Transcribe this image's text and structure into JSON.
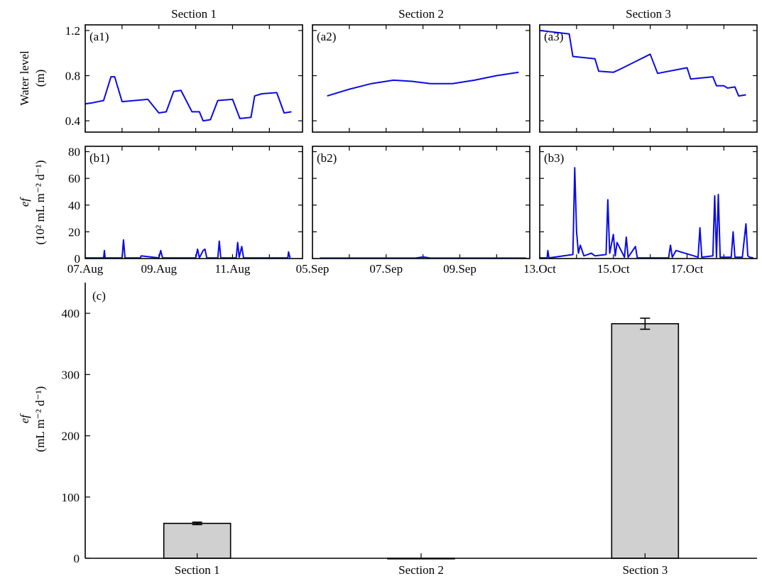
{
  "chart_data": [
    {
      "id": "a1",
      "type": "line",
      "panel_label": "(a1)",
      "title": "Section 1",
      "ylabel": "Water level",
      "ylabel_unit": "(m)",
      "ylim": [
        0.3,
        1.25
      ],
      "yticks": [
        0.4,
        0.8,
        1.2
      ],
      "ytick_labels": [
        "0.4",
        "0.8",
        "1.2"
      ],
      "xlim": [
        0,
        5.9
      ],
      "xticks": [
        0,
        1,
        2,
        3,
        4,
        5
      ],
      "series": [
        {
          "color": "#0b0be6",
          "x": [
            0,
            0.2,
            0.5,
            0.7,
            0.8,
            1.0,
            1.7,
            2.0,
            2.2,
            2.4,
            2.6,
            2.9,
            3.1,
            3.2,
            3.4,
            3.6,
            4.0,
            4.2,
            4.5,
            4.6,
            4.8,
            5.2,
            5.4,
            5.6
          ],
          "y": [
            0.55,
            0.56,
            0.58,
            0.79,
            0.79,
            0.57,
            0.59,
            0.47,
            0.48,
            0.66,
            0.67,
            0.48,
            0.48,
            0.4,
            0.41,
            0.58,
            0.59,
            0.42,
            0.43,
            0.62,
            0.64,
            0.65,
            0.47,
            0.48
          ]
        }
      ]
    },
    {
      "id": "a2",
      "type": "line",
      "panel_label": "(a2)",
      "title": "Section 2",
      "ylim": [
        0.3,
        1.25
      ],
      "yticks": [
        0.4,
        0.8,
        1.2
      ],
      "xlim": [
        0,
        5.9
      ],
      "xticks": [
        0,
        1,
        2,
        3,
        4,
        5
      ],
      "series": [
        {
          "color": "#0b0be6",
          "x": [
            0.4,
            1.0,
            1.6,
            2.2,
            2.7,
            3.2,
            3.8,
            4.4,
            5.0,
            5.6
          ],
          "y": [
            0.62,
            0.68,
            0.73,
            0.76,
            0.75,
            0.73,
            0.73,
            0.76,
            0.8,
            0.83
          ]
        }
      ]
    },
    {
      "id": "a3",
      "type": "line",
      "panel_label": "(a3)",
      "title": "Section 3",
      "ylim": [
        0.3,
        1.25
      ],
      "yticks": [
        0.4,
        0.8,
        1.2
      ],
      "xlim": [
        0,
        5.9
      ],
      "xticks": [
        0,
        1,
        2,
        3,
        4,
        5
      ],
      "series": [
        {
          "color": "#0b0be6",
          "x": [
            0,
            0.8,
            0.9,
            1.5,
            1.6,
            2.0,
            2.2,
            3.0,
            3.2,
            4.0,
            4.1,
            4.7,
            4.8,
            5.0,
            5.1,
            5.3,
            5.4,
            5.6
          ],
          "y": [
            1.2,
            1.17,
            0.97,
            0.95,
            0.84,
            0.83,
            0.86,
            0.99,
            0.82,
            0.87,
            0.77,
            0.79,
            0.71,
            0.71,
            0.69,
            0.7,
            0.62,
            0.63
          ]
        }
      ]
    },
    {
      "id": "b1",
      "type": "line",
      "panel_label": "(b1)",
      "ylabel_var": "ef",
      "ylabel_unit": "(10² mL m⁻² d⁻¹)",
      "ylim": [
        0,
        84
      ],
      "yticks": [
        0,
        20,
        40,
        60,
        80
      ],
      "ytick_labels": [
        "0",
        "20",
        "40",
        "60",
        "80"
      ],
      "xlim": [
        0,
        5.9
      ],
      "xticks": [
        0,
        1,
        2,
        3,
        4,
        5
      ],
      "xtick_labels": [
        "07.Aug",
        "09.Aug",
        "11.Aug"
      ],
      "xtick_label_at": [
        0,
        2,
        4
      ],
      "series": [
        {
          "color": "#0b0be6",
          "x": [
            0,
            0.5,
            0.52,
            0.54,
            1.0,
            1.04,
            1.08,
            1.5,
            1.52,
            2.0,
            2.05,
            2.1,
            3.0,
            3.05,
            3.1,
            3.2,
            3.25,
            3.3,
            3.6,
            3.64,
            3.68,
            4.1,
            4.14,
            4.18,
            4.25,
            4.3,
            5.5,
            5.52,
            5.56
          ],
          "y": [
            0.5,
            0.5,
            6,
            0.5,
            0.5,
            14,
            0.5,
            0.5,
            2,
            0.5,
            6,
            0.5,
            0.5,
            7,
            0.5,
            6,
            7,
            0.5,
            0.5,
            13,
            0.5,
            0.5,
            12,
            1,
            9,
            0.5,
            0.5,
            5,
            0.5
          ]
        }
      ]
    },
    {
      "id": "b2",
      "type": "line",
      "panel_label": "(b2)",
      "ylim": [
        0,
        84
      ],
      "yticks": [
        0,
        20,
        40,
        60,
        80
      ],
      "xlim": [
        0,
        5.9
      ],
      "xticks": [
        0,
        1,
        2,
        3,
        4,
        5
      ],
      "xtick_labels": [
        "05.Sep",
        "07.Sep",
        "09.Sep"
      ],
      "xtick_label_at": [
        0,
        2,
        4
      ],
      "series": [
        {
          "color": "#0b0be6",
          "x": [
            0.2,
            1.5,
            2.8,
            3.0,
            3.2,
            4.5,
            5.8
          ],
          "y": [
            0.3,
            0.3,
            0.3,
            1.2,
            0.3,
            0.3,
            0.3
          ]
        }
      ]
    },
    {
      "id": "b3",
      "type": "line",
      "panel_label": "(b3)",
      "ylim": [
        0,
        84
      ],
      "yticks": [
        0,
        20,
        40,
        60,
        80
      ],
      "xlim": [
        0,
        5.9
      ],
      "xticks": [
        0,
        1,
        2,
        3,
        4,
        5
      ],
      "xtick_labels": [
        "13.Oct",
        "15.Oct",
        "17.Oct"
      ],
      "xtick_label_at": [
        0,
        2,
        4
      ],
      "series": [
        {
          "color": "#0b0be6",
          "x": [
            0,
            0.2,
            0.22,
            0.25,
            0.9,
            0.95,
            1.0,
            1.05,
            1.1,
            1.2,
            1.3,
            1.4,
            1.5,
            1.8,
            1.85,
            1.9,
            2.0,
            2.05,
            2.1,
            2.3,
            2.35,
            2.4,
            2.6,
            2.65,
            3.5,
            3.55,
            3.6,
            3.7,
            4.3,
            4.35,
            4.4,
            4.7,
            4.75,
            4.8,
            4.85,
            4.9,
            5.2,
            5.25,
            5.3,
            5.5,
            5.6,
            5.65,
            5.7,
            5.8
          ],
          "y": [
            0.5,
            0.5,
            6,
            0.5,
            3,
            68,
            20,
            4,
            10,
            2,
            3,
            4,
            2,
            3,
            44,
            4,
            18,
            2,
            12,
            1,
            16,
            1,
            9,
            0.5,
            0.5,
            10,
            1,
            6,
            1,
            23,
            1,
            2,
            47,
            1,
            48,
            1,
            1,
            20,
            1,
            1,
            26,
            2,
            1,
            0.5
          ]
        }
      ]
    },
    {
      "id": "c",
      "type": "bar",
      "panel_label": "(c)",
      "ylabel_var": "ef",
      "ylabel_unit": "(mL m⁻² d⁻¹)",
      "categories": [
        "Section 1",
        "Section 2",
        "Section 3"
      ],
      "values": [
        57,
        0,
        383
      ],
      "errors": [
        2,
        0,
        9
      ],
      "ylim": [
        0,
        450
      ],
      "yticks": [
        0,
        100,
        200,
        300,
        400
      ],
      "ytick_labels": [
        "0",
        "100",
        "200",
        "300",
        "400"
      ],
      "bar_color": "#d0d0d0"
    }
  ]
}
